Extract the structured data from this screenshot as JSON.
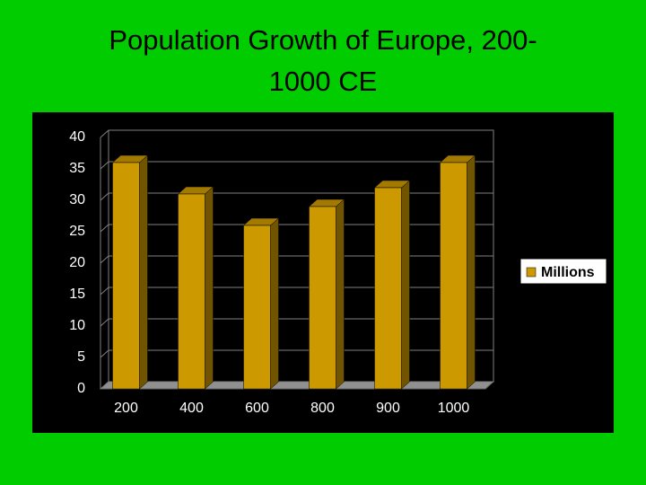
{
  "chart_data": {
    "type": "bar",
    "title": "Population Growth of Europe, 200-1000 CE",
    "categories": [
      "200",
      "400",
      "600",
      "800",
      "900",
      "1000"
    ],
    "series": [
      {
        "name": "Millions",
        "color": "#cc9900",
        "values": [
          36,
          31,
          26,
          29,
          32,
          36
        ]
      }
    ],
    "ylim": [
      0,
      40
    ],
    "yticks": [
      0,
      5,
      10,
      15,
      20,
      25,
      30,
      35,
      40
    ],
    "grid": true,
    "legend": "right"
  }
}
